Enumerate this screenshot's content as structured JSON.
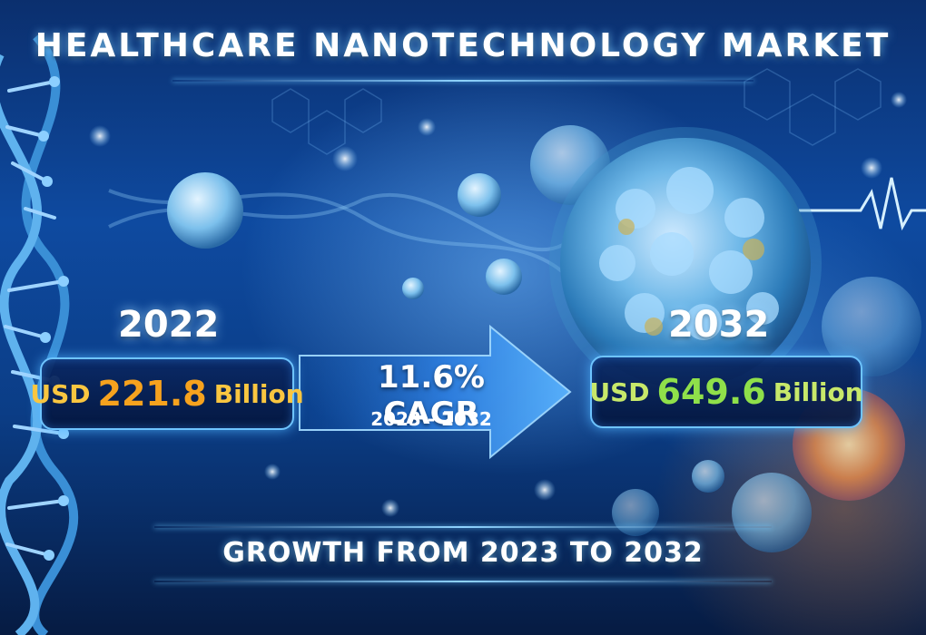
{
  "title": "HEALTHCARE NANOTECHNOLOGY MARKET",
  "left": {
    "year": "2022",
    "currency": "USD",
    "value": "221.8",
    "unit": "Billion"
  },
  "right": {
    "year": "2032",
    "currency": "USD",
    "value": "649.6",
    "unit": "Billion"
  },
  "growth": {
    "cagr": "11.6% CAGR",
    "range": "2023 - 2032"
  },
  "footer": "GROWTH FROM 2023 TO 2032",
  "colors": {
    "accent_value_left": "#f6a21e",
    "accent_word_left": "#f9c640",
    "accent_value_right": "#8fe04a",
    "accent_word_right": "#c7e86a",
    "glow": "#6ec4ff",
    "background": "#0e4aa0"
  },
  "icons": [
    "dna-helix-icon",
    "nanoparticle-icon",
    "heartbeat-line-icon",
    "arrow-right-icon"
  ]
}
